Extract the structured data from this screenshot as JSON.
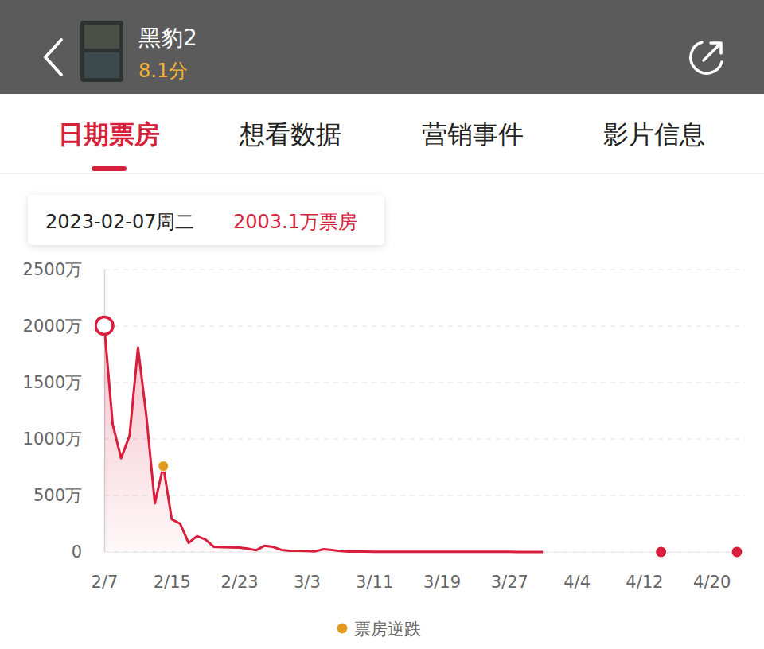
{
  "header": {
    "title": "黑豹2",
    "rating": "8.1分"
  },
  "tabs": [
    {
      "label": "日期票房",
      "active": true
    },
    {
      "label": "想看数据"
    },
    {
      "label": "营销事件"
    },
    {
      "label": "影片信息"
    }
  ],
  "tooltip": {
    "date": "2023-02-07周二",
    "value": 2003.1,
    "label": "2003.1万票房"
  },
  "chart_data": {
    "type": "line",
    "categories": [
      "2/7",
      null,
      null,
      null,
      null,
      null,
      null,
      null,
      "2/15",
      null,
      null,
      null,
      null,
      null,
      null,
      null,
      "2/23",
      null,
      null,
      null,
      null,
      null,
      null,
      null,
      "3/3",
      null,
      null,
      null,
      null,
      null,
      null,
      null,
      "3/11",
      null,
      null,
      null,
      null,
      null,
      null,
      null,
      "3/19",
      null,
      null,
      null,
      null,
      null,
      null,
      null,
      "3/27",
      null,
      null,
      null,
      null,
      null,
      null,
      null,
      "4/4",
      null,
      null,
      null,
      null,
      null,
      null,
      null,
      "4/12",
      null,
      null,
      null,
      null,
      null,
      null,
      null,
      "4/20",
      null,
      null,
      null
    ],
    "series": [
      {
        "color": "#d81e3c",
        "type": "area",
        "values": [
          2003.1,
          1130,
          830,
          1030,
          1810,
          1200,
          430,
          760,
          290,
          250,
          80,
          140,
          110,
          45,
          42,
          40,
          38,
          30,
          15,
          55,
          45,
          18,
          10,
          10,
          8,
          6,
          25,
          18,
          8,
          4,
          3,
          3,
          2,
          2,
          2,
          2,
          1.5,
          1.5,
          1.5,
          1.5,
          1,
          1,
          1,
          1,
          1,
          1,
          1,
          1,
          1,
          0.8,
          0.8,
          0.8,
          0.8,
          null,
          null,
          null,
          null,
          null,
          null,
          null,
          null,
          null,
          null,
          null,
          null,
          null,
          0.5,
          null,
          null,
          null,
          null,
          null,
          null,
          null,
          null,
          0.5
        ]
      },
      {
        "name": "票房逆跌",
        "color": "#e39a1f",
        "type": "scatter",
        "marker": "circle",
        "values": [
          null,
          null,
          null,
          null,
          null,
          null,
          null,
          760,
          null,
          null,
          null,
          null,
          null,
          null,
          null,
          null,
          null,
          null,
          null,
          null,
          null,
          null,
          null,
          null,
          null,
          null,
          null,
          null,
          null,
          null,
          null,
          null,
          null,
          null,
          null,
          null,
          null,
          null,
          null,
          null,
          null,
          null,
          null,
          null,
          null,
          null,
          null,
          null,
          null,
          null,
          null,
          null,
          null,
          null,
          null,
          null,
          null,
          null,
          null,
          null,
          null,
          null,
          null,
          null,
          null,
          null,
          null,
          null,
          null,
          null,
          null,
          null,
          null,
          null,
          null,
          null
        ]
      }
    ],
    "ylim": [
      0,
      2500
    ],
    "yticks": [
      0,
      {
        "value": 500,
        "label": "500万"
      },
      {
        "value": 1000,
        "label": "1000万"
      },
      {
        "value": 1500,
        "label": "1500万"
      },
      {
        "value": 2000,
        "label": "2000万"
      },
      {
        "value": 2500,
        "label": "2500万"
      }
    ],
    "grid": true,
    "legend": "bottom"
  }
}
